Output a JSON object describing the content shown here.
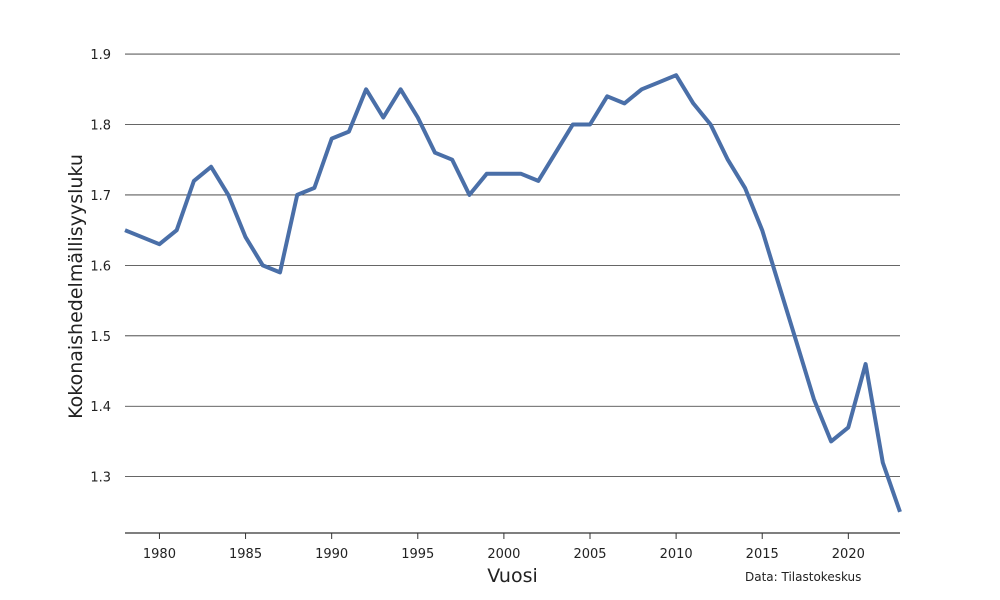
{
  "chart_data": {
    "type": "line",
    "title": "",
    "xlabel": "Vuosi",
    "ylabel": "Kokonaishedelmällisyysluku",
    "source": "Data: Tilastokeskus",
    "xlim": [
      1978,
      2023
    ],
    "ylim": [
      1.22,
      1.92
    ],
    "x_ticks": [
      1980,
      1985,
      1990,
      1995,
      2000,
      2005,
      2010,
      2015,
      2020
    ],
    "y_ticks": [
      1.3,
      1.4,
      1.5,
      1.6,
      1.7,
      1.8,
      1.9
    ],
    "grid": "horizontal",
    "colors": {
      "line": "#4a6fa8",
      "grid": "#333333",
      "axis": "#333333"
    },
    "series": [
      {
        "x": [
          1978,
          1979,
          1980,
          1981,
          1982,
          1983,
          1984,
          1985,
          1986,
          1987,
          1988,
          1989,
          1990,
          1991,
          1992,
          1993,
          1994,
          1995,
          1996,
          1997,
          1998,
          1999,
          2000,
          2001,
          2002,
          2003,
          2004,
          2005,
          2006,
          2007,
          2008,
          2009,
          2010,
          2011,
          2012,
          2013,
          2014,
          2015,
          2016,
          2017,
          2018,
          2019,
          2020,
          2021,
          2022,
          2023
        ],
        "values": [
          1.65,
          1.64,
          1.63,
          1.65,
          1.72,
          1.74,
          1.7,
          1.64,
          1.6,
          1.59,
          1.7,
          1.71,
          1.78,
          1.79,
          1.85,
          1.81,
          1.85,
          1.81,
          1.76,
          1.75,
          1.7,
          1.73,
          1.73,
          1.73,
          1.72,
          1.76,
          1.8,
          1.8,
          1.84,
          1.83,
          1.85,
          1.86,
          1.87,
          1.83,
          1.8,
          1.75,
          1.71,
          1.65,
          1.57,
          1.49,
          1.41,
          1.35,
          1.37,
          1.46,
          1.32,
          1.25
        ]
      }
    ]
  }
}
